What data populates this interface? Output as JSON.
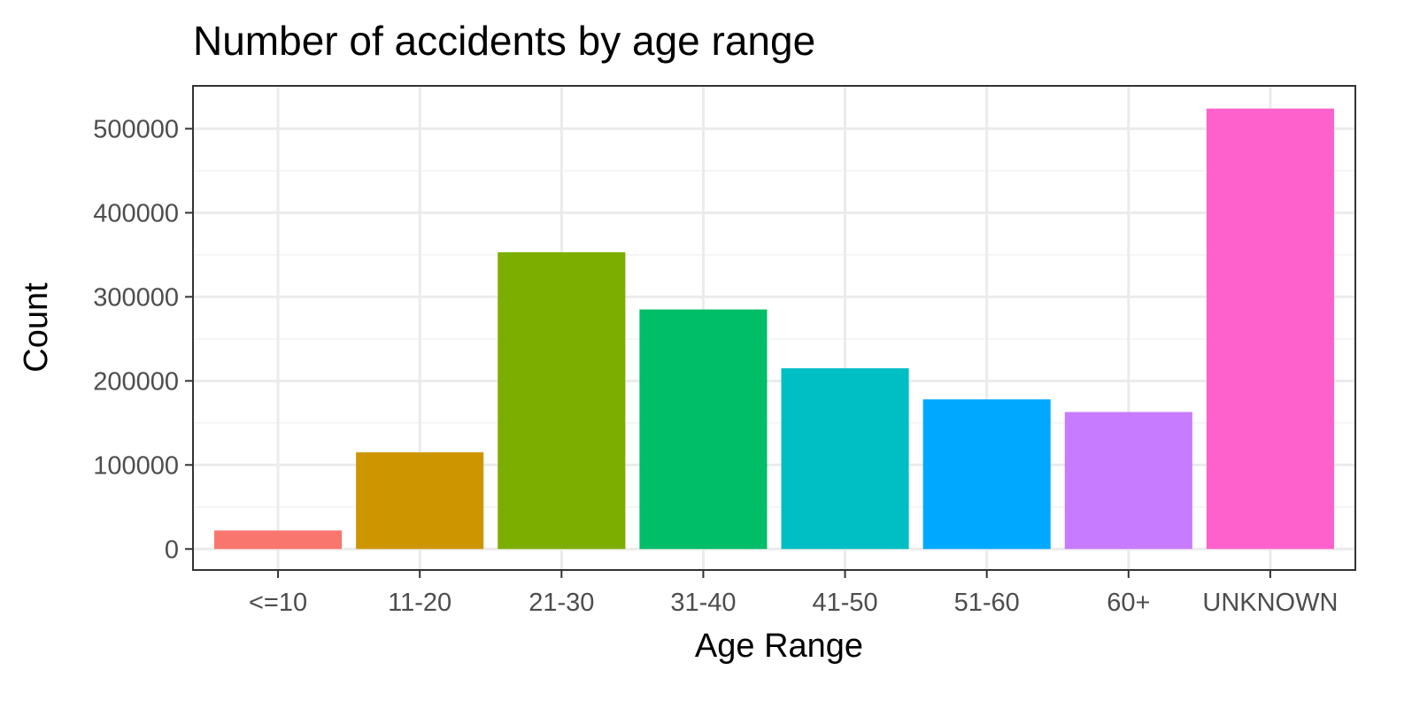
{
  "chart_data": {
    "type": "bar",
    "title": "Number of accidents by age range",
    "xlabel": "Age Range",
    "ylabel": "Count",
    "categories": [
      "<=10",
      "11-20",
      "21-30",
      "31-40",
      "41-50",
      "51-60",
      "60+",
      "UNKNOWN"
    ],
    "values": [
      22000,
      115000,
      353000,
      285000,
      215000,
      178000,
      163000,
      524000
    ],
    "colors": [
      "#F8766D",
      "#CD9600",
      "#7CAE00",
      "#00BE67",
      "#00BFC4",
      "#00A9FF",
      "#C77CFF",
      "#FF61CC"
    ],
    "ylim": [
      -25000,
      551000
    ],
    "yticks": [
      0,
      100000,
      200000,
      300000,
      400000,
      500000
    ],
    "ytick_labels": [
      "0",
      "100000",
      "200000",
      "300000",
      "400000",
      "500000"
    ],
    "grid": true,
    "legend": "none"
  }
}
